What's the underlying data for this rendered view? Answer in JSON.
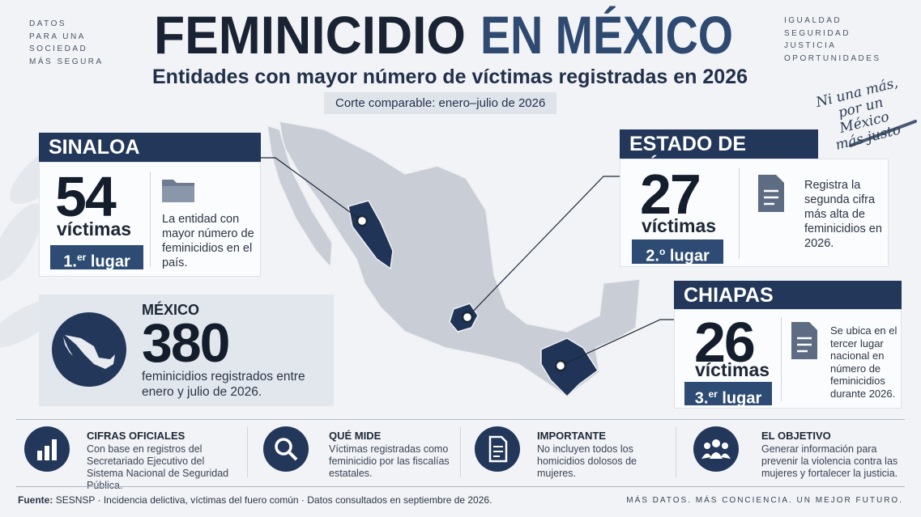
{
  "header": {
    "corner_left": [
      "DATOS",
      "PARA UNA",
      "SOCIEDAD",
      "MÁS SEGURA"
    ],
    "corner_right": [
      "IGUALDAD",
      "SEGURIDAD",
      "JUSTICIA",
      "OPORTUNIDADES"
    ],
    "title_part1": "FEMINICIDIO",
    "title_part2": "EN MÉXICO",
    "subtitle": "Entidades con mayor número de víctimas registradas en 2026",
    "period": "Corte comparable: enero–julio de 2026",
    "slogan": [
      "Ni una más,",
      "por un México",
      "más justo"
    ]
  },
  "states": [
    {
      "name": "SINALOA",
      "count": "54",
      "unit": "víctimas",
      "rank_number": "1.",
      "rank_suffix": "er",
      "rank_word": "lugar",
      "description": "La entidad con mayor número de feminicidios en el país."
    },
    {
      "name": "ESTADO DE MÉXICO",
      "count": "27",
      "unit": "víctimas",
      "rank_number": "2.",
      "rank_suffix": "o",
      "rank_word": "lugar",
      "description": "Registra la segunda cifra más alta de feminicidios en 2026."
    },
    {
      "name": "CHIAPAS",
      "count": "26",
      "unit": "víctimas",
      "rank_number": "3.",
      "rank_suffix": "er",
      "rank_word": "lugar",
      "description": "Se ubica en el tercer lugar nacional en número de feminicidios durante 2026."
    }
  ],
  "national": {
    "label": "MÉXICO",
    "total": "380",
    "description": "feminicidios registrados entre enero y julio de 2026."
  },
  "notes": [
    {
      "title": "CIFRAS OFICIALES",
      "text": "Con base en registros del Secretariado Ejecutivo del Sistema Nacional de Seguridad Pública."
    },
    {
      "title": "QUÉ MIDE",
      "text": "Víctimas registradas como feminicidio por las fiscalías estatales."
    },
    {
      "title": "IMPORTANTE",
      "text": "No incluyen todos los homicidios dolosos de mujeres."
    },
    {
      "title": "EL OBJETIVO",
      "text": "Generar información para prevenir la violencia contra las mujeres y fortalecer la justicia."
    }
  ],
  "footer": {
    "source_label": "Fuente:",
    "source_text": "SESNSP · Incidencia delictiva, víctimas del fuero común · Datos consultados en septiembre de 2026.",
    "tagline": "MÁS DATOS. MÁS CONCIENCIA. UN MEJOR FUTURO."
  }
}
